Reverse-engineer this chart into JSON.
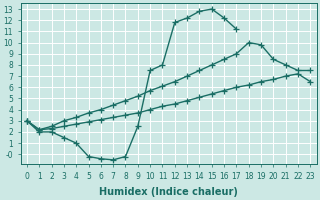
{
  "bg_color": "#cce8e4",
  "grid_color": "#b0d8d2",
  "line_color": "#1a6e65",
  "marker": "+",
  "markersize": 4,
  "linewidth": 1.0,
  "xlabel": "Humidex (Indice chaleur)",
  "xlabel_fontsize": 7,
  "xlabel_fontweight": "bold",
  "tick_fontsize": 5.5,
  "xlim": [
    -0.5,
    23.5
  ],
  "ylim": [
    -0.9,
    13.5
  ],
  "xticks": [
    0,
    1,
    2,
    3,
    4,
    5,
    6,
    7,
    8,
    9,
    10,
    11,
    12,
    13,
    14,
    15,
    16,
    17,
    18,
    19,
    20,
    21,
    22,
    23
  ],
  "yticks": [
    0,
    1,
    2,
    3,
    4,
    5,
    6,
    7,
    8,
    9,
    10,
    11,
    12,
    13
  ],
  "ytick_labels": [
    "-0",
    "1",
    "2",
    "3",
    "4",
    "5",
    "6",
    "7",
    "8",
    "9",
    "10",
    "11",
    "12",
    "13"
  ],
  "curve1_x": [
    0,
    1,
    2,
    3,
    4,
    5,
    6,
    7,
    8,
    9,
    10,
    11,
    12,
    13,
    14,
    15,
    16,
    17
  ],
  "curve1_y": [
    3,
    2,
    2,
    1.5,
    1.0,
    -0.2,
    -0.4,
    -0.5,
    -0.2,
    2.5,
    7.5,
    8.0,
    11.8,
    12.2,
    12.8,
    13.0,
    12.2,
    11.2
  ],
  "curve2_x": [
    0,
    1,
    2,
    3,
    4,
    5,
    6,
    7,
    8,
    9,
    10,
    11,
    12,
    13,
    14,
    15,
    16,
    17,
    18,
    19,
    20,
    21,
    22,
    23
  ],
  "curve2_y": [
    3.0,
    2.2,
    2.3,
    2.5,
    2.7,
    2.9,
    3.1,
    3.3,
    3.5,
    3.7,
    4.0,
    4.3,
    4.5,
    4.8,
    5.1,
    5.4,
    5.7,
    6.0,
    6.2,
    6.5,
    6.7,
    7.0,
    7.2,
    6.5
  ],
  "curve3_x": [
    0,
    1,
    2,
    3,
    4,
    5,
    6,
    7,
    8,
    9,
    10,
    11,
    12,
    13,
    14,
    15,
    16,
    17,
    18,
    19,
    20,
    21,
    22,
    23
  ],
  "curve3_y": [
    3.0,
    2.2,
    2.5,
    3.0,
    3.3,
    3.7,
    4.0,
    4.4,
    4.8,
    5.2,
    5.7,
    6.1,
    6.5,
    7.0,
    7.5,
    8.0,
    8.5,
    9.0,
    10.0,
    9.8,
    8.5,
    8.0,
    7.5,
    7.5
  ]
}
